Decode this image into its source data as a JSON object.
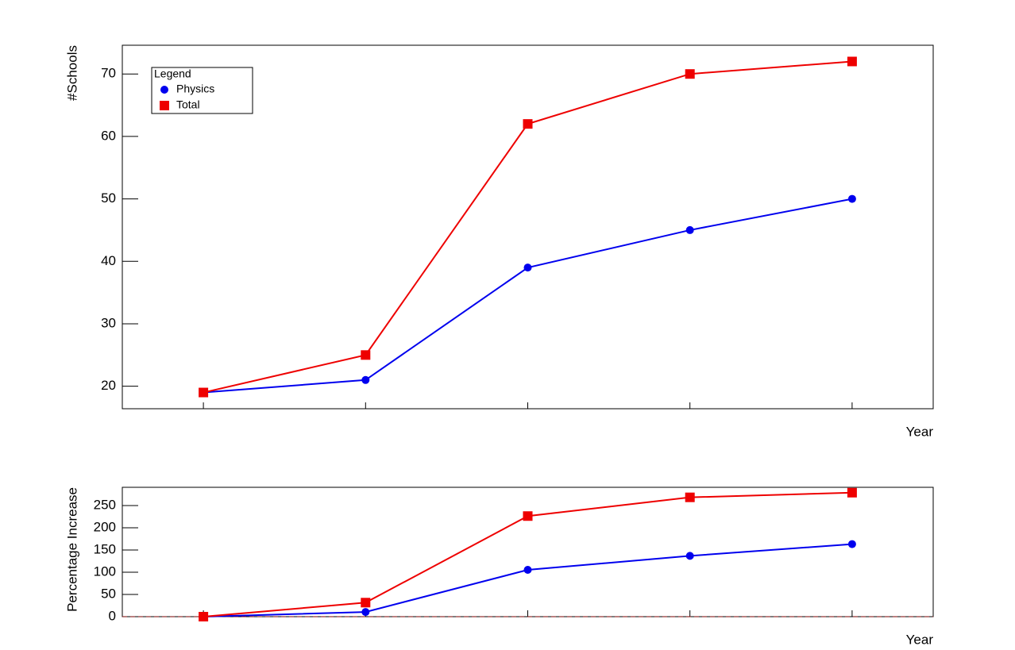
{
  "chart_data": [
    {
      "type": "line",
      "xlabel": "Year",
      "ylabel": "#Schools",
      "categories": [
        null,
        null,
        null,
        null,
        null
      ],
      "series": [
        {
          "name": "Physics",
          "color": "#0000ee",
          "marker": "circle",
          "values": [
            19,
            21,
            39,
            45,
            50
          ]
        },
        {
          "name": "Total",
          "color": "#ee0000",
          "marker": "square",
          "values": [
            19,
            25,
            62,
            70,
            72
          ]
        }
      ],
      "ylim": [
        16.4,
        74.6
      ],
      "yticks": [
        20,
        30,
        40,
        50,
        60,
        70
      ],
      "legend": {
        "title": "Legend",
        "position": "upper left"
      }
    },
    {
      "type": "line",
      "xlabel": "Year",
      "ylabel": "Percentage Increase",
      "categories": [
        null,
        null,
        null,
        null,
        null
      ],
      "series": [
        {
          "color": "#0000ee",
          "marker": "circle",
          "values": [
            0,
            10.5,
            105.3,
            136.8,
            163.2
          ]
        },
        {
          "color": "#ee0000",
          "marker": "square",
          "values": [
            0,
            31.6,
            226.3,
            268.4,
            278.9
          ]
        }
      ],
      "ylim": [
        0,
        291
      ],
      "yticks": [
        0,
        50,
        100,
        150,
        200,
        250
      ]
    }
  ]
}
